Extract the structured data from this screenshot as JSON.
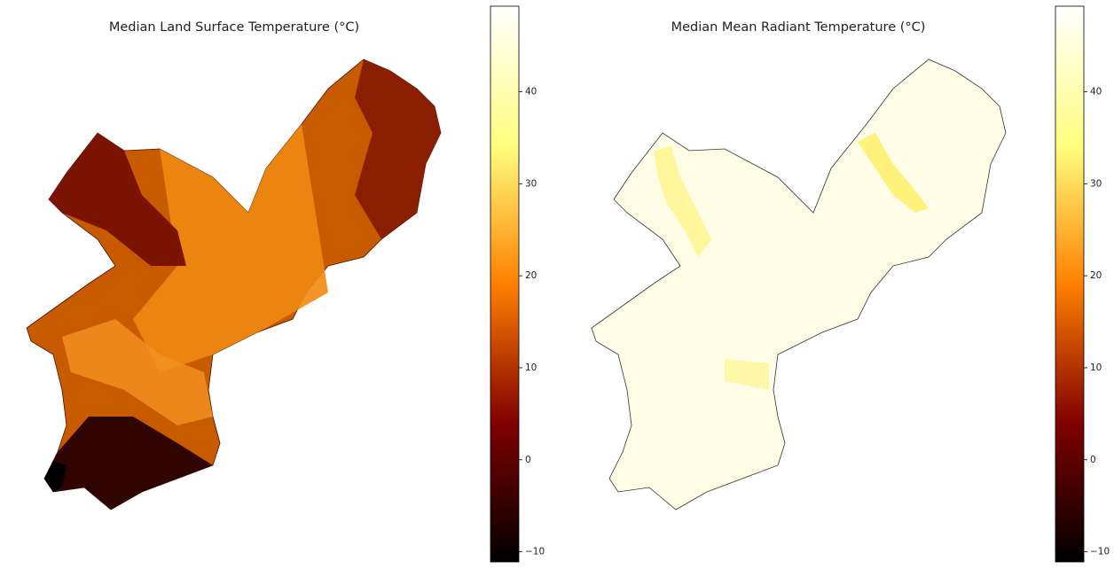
{
  "panels": [
    {
      "title": "Median Land Surface Temperature (°C)",
      "colormap": "afmhot",
      "colorbar": {
        "lim": [
          -11.1,
          49.3
        ],
        "ticks": [
          {
            "value": -10,
            "label": "−10"
          },
          0,
          10,
          20,
          30,
          40
        ]
      }
    },
    {
      "title": "Median Mean Radiant Temperature (°C)",
      "colormap": "afmhot",
      "colorbar": {
        "lim": [
          -11.1,
          49.3
        ],
        "ticks": [
          {
            "value": -10,
            "label": "−10"
          },
          0,
          10,
          20,
          30,
          40
        ]
      }
    }
  ]
}
